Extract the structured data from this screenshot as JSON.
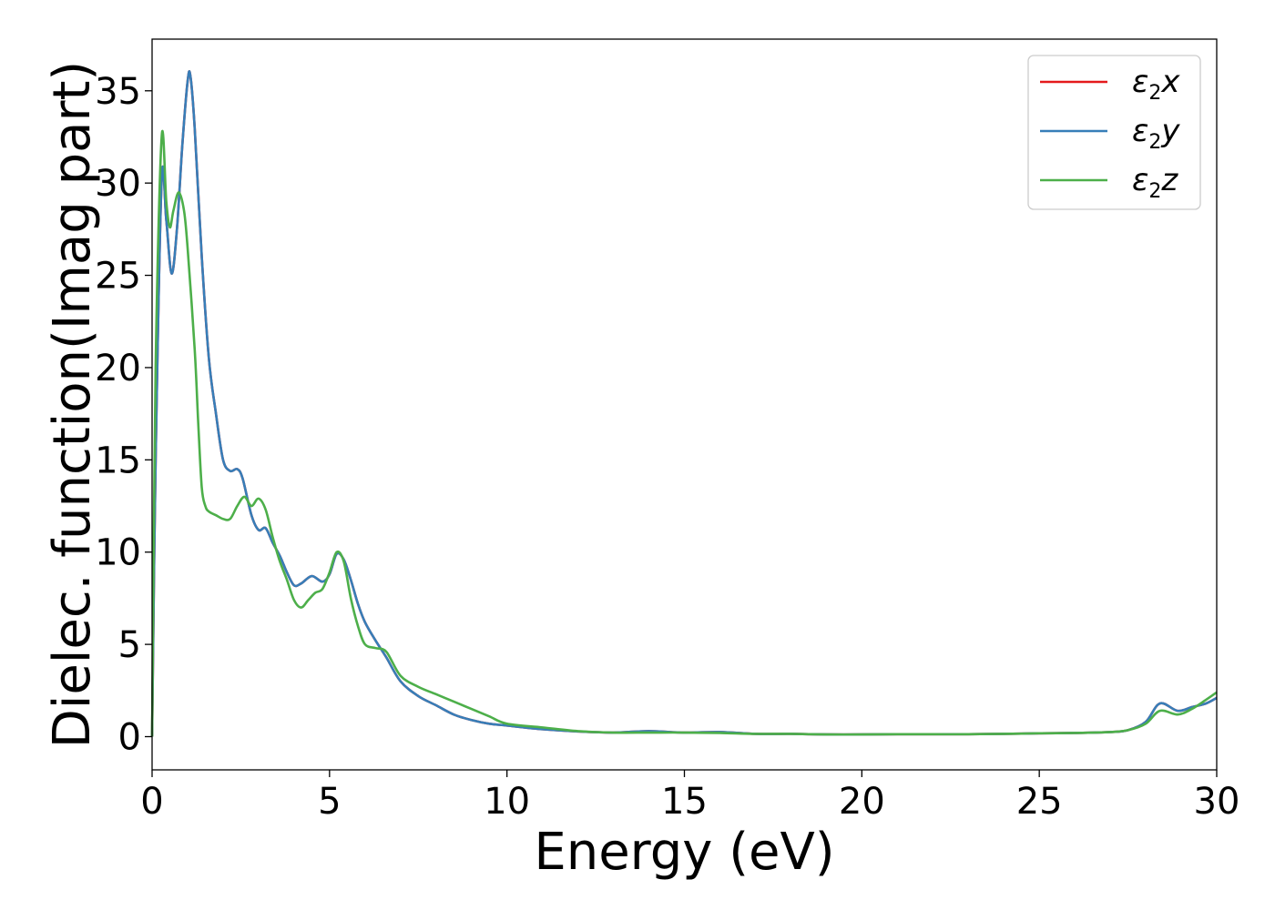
{
  "chart_data": {
    "type": "line",
    "title": "",
    "xlabel": "Energy (eV)",
    "ylabel": "Dielec. function(Imag part)",
    "xlim": [
      0,
      30
    ],
    "ylim": [
      -1.8,
      37.8
    ],
    "xticks": [
      0,
      5,
      10,
      15,
      20,
      25,
      30
    ],
    "yticks": [
      0,
      5,
      10,
      15,
      20,
      25,
      30,
      35
    ],
    "grid": false,
    "legend_position": "top-right",
    "series": [
      {
        "name": "ε2x",
        "legend_base": "ε",
        "legend_sub": "2",
        "legend_var": "x",
        "color": "#e41a1c",
        "x": [
          0,
          0.1,
          0.27,
          0.4,
          0.55,
          0.7,
          0.85,
          1.0,
          1.08,
          1.2,
          1.4,
          1.6,
          1.8,
          2.0,
          2.2,
          2.4,
          2.55,
          2.8,
          3.0,
          3.2,
          3.4,
          3.6,
          3.8,
          4.0,
          4.2,
          4.5,
          4.8,
          5.0,
          5.2,
          5.4,
          5.6,
          5.8,
          6.0,
          6.3,
          6.6,
          7.0,
          7.5,
          8.0,
          8.5,
          9.0,
          9.5,
          10.0,
          11.0,
          12.0,
          13.0,
          14.0,
          15.0,
          16.0,
          17.0,
          18.0,
          19.0,
          20.0,
          21.0,
          22.0,
          23.0,
          24.0,
          25.0,
          26.0,
          27.0,
          27.5,
          28.0,
          28.4,
          28.9,
          29.3,
          29.7,
          30.0
        ],
        "y": [
          0,
          15,
          30.2,
          28,
          25.1,
          27.5,
          32,
          35.5,
          35.8,
          33,
          26,
          20.5,
          17.5,
          15,
          14.4,
          14.5,
          14,
          12,
          11.2,
          11.3,
          10.5,
          9.8,
          8.9,
          8.2,
          8.3,
          8.7,
          8.4,
          8.8,
          9.9,
          9.6,
          8.5,
          7.2,
          6.2,
          5.2,
          4.3,
          3.0,
          2.2,
          1.7,
          1.2,
          0.9,
          0.7,
          0.6,
          0.4,
          0.28,
          0.22,
          0.3,
          0.22,
          0.25,
          0.15,
          0.15,
          0.12,
          0.12,
          0.13,
          0.13,
          0.13,
          0.15,
          0.18,
          0.2,
          0.25,
          0.35,
          0.8,
          1.8,
          1.4,
          1.6,
          1.8,
          2.1
        ]
      },
      {
        "name": "ε2y",
        "legend_base": "ε",
        "legend_sub": "2",
        "legend_var": "y",
        "color": "#377eb8",
        "x": [
          0,
          0.1,
          0.27,
          0.4,
          0.55,
          0.7,
          0.85,
          1.0,
          1.08,
          1.2,
          1.4,
          1.6,
          1.8,
          2.0,
          2.2,
          2.4,
          2.55,
          2.8,
          3.0,
          3.2,
          3.4,
          3.6,
          3.8,
          4.0,
          4.2,
          4.5,
          4.8,
          5.0,
          5.2,
          5.4,
          5.6,
          5.8,
          6.0,
          6.3,
          6.6,
          7.0,
          7.5,
          8.0,
          8.5,
          9.0,
          9.5,
          10.0,
          11.0,
          12.0,
          13.0,
          14.0,
          15.0,
          16.0,
          17.0,
          18.0,
          19.0,
          20.0,
          21.0,
          22.0,
          23.0,
          24.0,
          25.0,
          26.0,
          27.0,
          27.5,
          28.0,
          28.4,
          28.9,
          29.3,
          29.7,
          30.0
        ],
        "y": [
          0,
          15,
          30.2,
          28,
          25.1,
          27.5,
          32,
          35.5,
          35.8,
          33,
          26,
          20.5,
          17.5,
          15,
          14.4,
          14.5,
          14,
          12,
          11.2,
          11.3,
          10.5,
          9.8,
          8.9,
          8.2,
          8.3,
          8.7,
          8.4,
          8.8,
          9.9,
          9.6,
          8.5,
          7.2,
          6.2,
          5.2,
          4.3,
          3.0,
          2.2,
          1.7,
          1.2,
          0.9,
          0.7,
          0.6,
          0.4,
          0.28,
          0.22,
          0.3,
          0.22,
          0.25,
          0.15,
          0.15,
          0.12,
          0.12,
          0.13,
          0.13,
          0.13,
          0.15,
          0.18,
          0.2,
          0.25,
          0.35,
          0.8,
          1.8,
          1.4,
          1.6,
          1.8,
          2.1
        ]
      },
      {
        "name": "ε2z",
        "legend_base": "ε",
        "legend_sub": "2",
        "legend_var": "z",
        "color": "#4daf4a",
        "x": [
          0,
          0.1,
          0.27,
          0.4,
          0.5,
          0.6,
          0.75,
          0.9,
          1.0,
          1.2,
          1.3,
          1.4,
          1.5,
          1.6,
          1.8,
          2.0,
          2.2,
          2.4,
          2.6,
          2.8,
          3.0,
          3.2,
          3.4,
          3.6,
          3.8,
          4.0,
          4.2,
          4.4,
          4.6,
          4.8,
          5.0,
          5.2,
          5.4,
          5.6,
          5.8,
          6.0,
          6.3,
          6.6,
          7.0,
          7.5,
          8.0,
          8.5,
          9.0,
          9.5,
          10.0,
          11.0,
          12.0,
          13.0,
          14.0,
          15.0,
          16.0,
          17.0,
          18.0,
          19.0,
          20.0,
          21.0,
          22.0,
          23.0,
          24.0,
          25.0,
          26.0,
          27.0,
          27.5,
          28.0,
          28.4,
          28.9,
          29.3,
          29.7,
          30.0
        ],
        "y": [
          0,
          20,
          32.5,
          29,
          27.6,
          28.5,
          29.5,
          28.5,
          26.5,
          21,
          17,
          13.5,
          12.5,
          12.2,
          12.0,
          11.8,
          11.8,
          12.5,
          13.0,
          12.5,
          12.9,
          12.3,
          10.8,
          9.5,
          8.5,
          7.4,
          7.0,
          7.4,
          7.8,
          8.0,
          8.9,
          10.0,
          9.5,
          7.5,
          6.0,
          5.0,
          4.8,
          4.6,
          3.3,
          2.7,
          2.3,
          1.9,
          1.5,
          1.1,
          0.7,
          0.5,
          0.3,
          0.22,
          0.22,
          0.22,
          0.2,
          0.15,
          0.15,
          0.12,
          0.12,
          0.13,
          0.13,
          0.13,
          0.15,
          0.18,
          0.2,
          0.25,
          0.35,
          0.7,
          1.4,
          1.2,
          1.5,
          2.0,
          2.4
        ]
      }
    ]
  }
}
